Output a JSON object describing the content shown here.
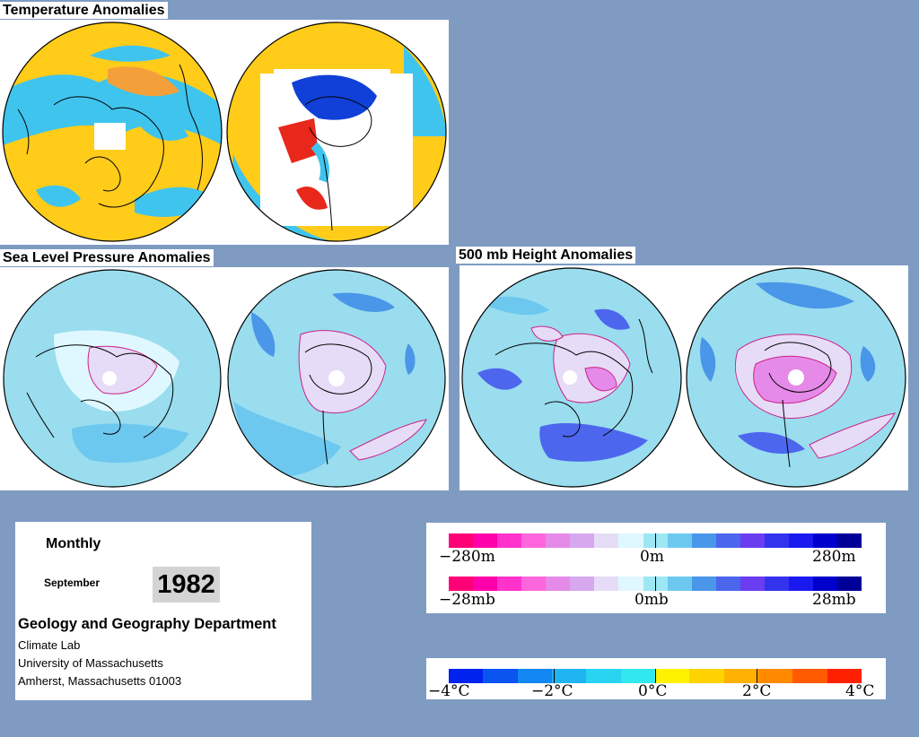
{
  "sections": {
    "temperature_title": "Temperature Anomalies",
    "slp_title": "Sea Level Pressure Anomalies",
    "height_title": "500 mb Height Anomalies"
  },
  "info": {
    "period": "Monthly",
    "month": "September",
    "year": "1982",
    "department": "Geology and Geography Department",
    "lines": [
      "Climate Lab",
      "University of Massachusetts",
      "Amherst, Massachusetts 01003"
    ]
  },
  "legends": {
    "height": {
      "left": "−280m",
      "center": "0m",
      "right": "280m"
    },
    "pressure": {
      "left": "−28mb",
      "center": "0mb",
      "right": "28mb"
    },
    "temperature": {
      "labels": [
        "−4°C",
        "−2°C",
        "0°C",
        "2°C",
        "4°C"
      ]
    }
  },
  "colors": {
    "anomaly_scale": [
      "#ff0077",
      "#ff00aa",
      "#ff33cc",
      "#ff66dd",
      "#e58ae8",
      "#d7a8ee",
      "#e6dcf7",
      "#dff8ff",
      "#9de7f5",
      "#6dc8f0",
      "#4a96e8",
      "#4d66ee",
      "#6a3df0",
      "#3333ee",
      "#1a1af0",
      "#0000cc",
      "#000099"
    ],
    "temperature_scale": [
      "#0022ee",
      "#0a55f0",
      "#1488f2",
      "#1fb4f2",
      "#28d4f2",
      "#30e8ee",
      "#fff200",
      "#ffd200",
      "#ffb000",
      "#ff8a00",
      "#ff5a00",
      "#ff2000"
    ],
    "background": "#7f9bc2"
  }
}
